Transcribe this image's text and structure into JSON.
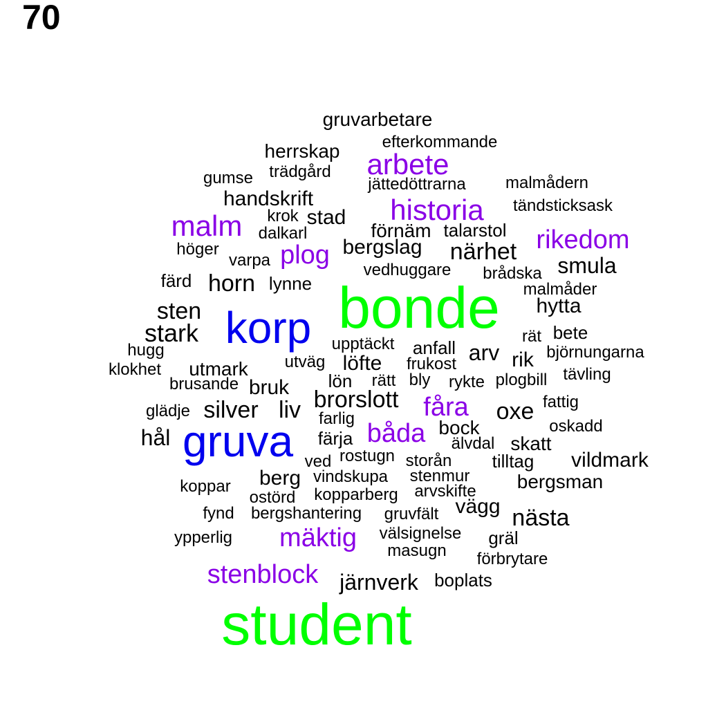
{
  "page_number": "70",
  "colors": {
    "large": "#00ff00",
    "medium": "#0000ee",
    "small": "#8a00e6",
    "base": "#000000"
  },
  "words": [
    {
      "text": "student",
      "tier": "large"
    },
    {
      "text": "bonde",
      "tier": "large"
    },
    {
      "text": "korp",
      "tier": "medium"
    },
    {
      "text": "gruva",
      "tier": "medium"
    },
    {
      "text": "malm",
      "tier": "small"
    },
    {
      "text": "historia",
      "tier": "small"
    },
    {
      "text": "arbete",
      "tier": "small"
    },
    {
      "text": "rikedom",
      "tier": "small"
    },
    {
      "text": "plog",
      "tier": "small"
    },
    {
      "text": "fåra",
      "tier": "small"
    },
    {
      "text": "båda",
      "tier": "small"
    },
    {
      "text": "mäktig",
      "tier": "small"
    },
    {
      "text": "stenblock",
      "tier": "small"
    },
    {
      "text": "gruvarbetare",
      "tier": "base"
    },
    {
      "text": "efterkommande",
      "tier": "base"
    },
    {
      "text": "herrskap",
      "tier": "base"
    },
    {
      "text": "trädgård",
      "tier": "base"
    },
    {
      "text": "gumse",
      "tier": "base"
    },
    {
      "text": "jättedöttrarna",
      "tier": "base"
    },
    {
      "text": "malmådern",
      "tier": "base"
    },
    {
      "text": "handskrift",
      "tier": "base"
    },
    {
      "text": "tändsticksask",
      "tier": "base"
    },
    {
      "text": "krok",
      "tier": "base"
    },
    {
      "text": "stad",
      "tier": "base"
    },
    {
      "text": "dalkarl",
      "tier": "base"
    },
    {
      "text": "förnäm",
      "tier": "base"
    },
    {
      "text": "talarstol",
      "tier": "base"
    },
    {
      "text": "höger",
      "tier": "base"
    },
    {
      "text": "bergslag",
      "tier": "base"
    },
    {
      "text": "närhet",
      "tier": "base"
    },
    {
      "text": "varpa",
      "tier": "base"
    },
    {
      "text": "vedhuggare",
      "tier": "base"
    },
    {
      "text": "smula",
      "tier": "base"
    },
    {
      "text": "brådska",
      "tier": "base"
    },
    {
      "text": "färd",
      "tier": "base"
    },
    {
      "text": "horn",
      "tier": "base"
    },
    {
      "text": "lynne",
      "tier": "base"
    },
    {
      "text": "malmåder",
      "tier": "base"
    },
    {
      "text": "sten",
      "tier": "base"
    },
    {
      "text": "hytta",
      "tier": "base"
    },
    {
      "text": "stark",
      "tier": "base"
    },
    {
      "text": "rät",
      "tier": "base"
    },
    {
      "text": "bete",
      "tier": "base"
    },
    {
      "text": "hugg",
      "tier": "base"
    },
    {
      "text": "upptäckt",
      "tier": "base"
    },
    {
      "text": "anfall",
      "tier": "base"
    },
    {
      "text": "arv",
      "tier": "base"
    },
    {
      "text": "björnungarna",
      "tier": "base"
    },
    {
      "text": "klokhet",
      "tier": "base"
    },
    {
      "text": "utmark",
      "tier": "base"
    },
    {
      "text": "utväg",
      "tier": "base"
    },
    {
      "text": "löfte",
      "tier": "base"
    },
    {
      "text": "frukost",
      "tier": "base"
    },
    {
      "text": "rik",
      "tier": "base"
    },
    {
      "text": "tävling",
      "tier": "base"
    },
    {
      "text": "brusande",
      "tier": "base"
    },
    {
      "text": "lön",
      "tier": "base"
    },
    {
      "text": "rätt",
      "tier": "base"
    },
    {
      "text": "bly",
      "tier": "base"
    },
    {
      "text": "rykte",
      "tier": "base"
    },
    {
      "text": "plogbill",
      "tier": "base"
    },
    {
      "text": "bruk",
      "tier": "base"
    },
    {
      "text": "brorslott",
      "tier": "base"
    },
    {
      "text": "fattig",
      "tier": "base"
    },
    {
      "text": "glädje",
      "tier": "base"
    },
    {
      "text": "silver",
      "tier": "base"
    },
    {
      "text": "liv",
      "tier": "base"
    },
    {
      "text": "oxe",
      "tier": "base"
    },
    {
      "text": "farlig",
      "tier": "base"
    },
    {
      "text": "oskadd",
      "tier": "base"
    },
    {
      "text": "bock",
      "tier": "base"
    },
    {
      "text": "hål",
      "tier": "base"
    },
    {
      "text": "färja",
      "tier": "base"
    },
    {
      "text": "älvdal",
      "tier": "base"
    },
    {
      "text": "skatt",
      "tier": "base"
    },
    {
      "text": "rostugn",
      "tier": "base"
    },
    {
      "text": "ved",
      "tier": "base"
    },
    {
      "text": "storån",
      "tier": "base"
    },
    {
      "text": "tilltag",
      "tier": "base"
    },
    {
      "text": "vildmark",
      "tier": "base"
    },
    {
      "text": "berg",
      "tier": "base"
    },
    {
      "text": "vindskupa",
      "tier": "base"
    },
    {
      "text": "stenmur",
      "tier": "base"
    },
    {
      "text": "bergsman",
      "tier": "base"
    },
    {
      "text": "koppar",
      "tier": "base"
    },
    {
      "text": "arvskifte",
      "tier": "base"
    },
    {
      "text": "ostörd",
      "tier": "base"
    },
    {
      "text": "kopparberg",
      "tier": "base"
    },
    {
      "text": "vägg",
      "tier": "base"
    },
    {
      "text": "fynd",
      "tier": "base"
    },
    {
      "text": "bergshantering",
      "tier": "base"
    },
    {
      "text": "gruvfält",
      "tier": "base"
    },
    {
      "text": "nästa",
      "tier": "base"
    },
    {
      "text": "välsignelse",
      "tier": "base"
    },
    {
      "text": "ypperlig",
      "tier": "base"
    },
    {
      "text": "gräl",
      "tier": "base"
    },
    {
      "text": "masugn",
      "tier": "base"
    },
    {
      "text": "förbrytare",
      "tier": "base"
    },
    {
      "text": "järnverk",
      "tier": "base"
    },
    {
      "text": "boplats",
      "tier": "base"
    }
  ]
}
